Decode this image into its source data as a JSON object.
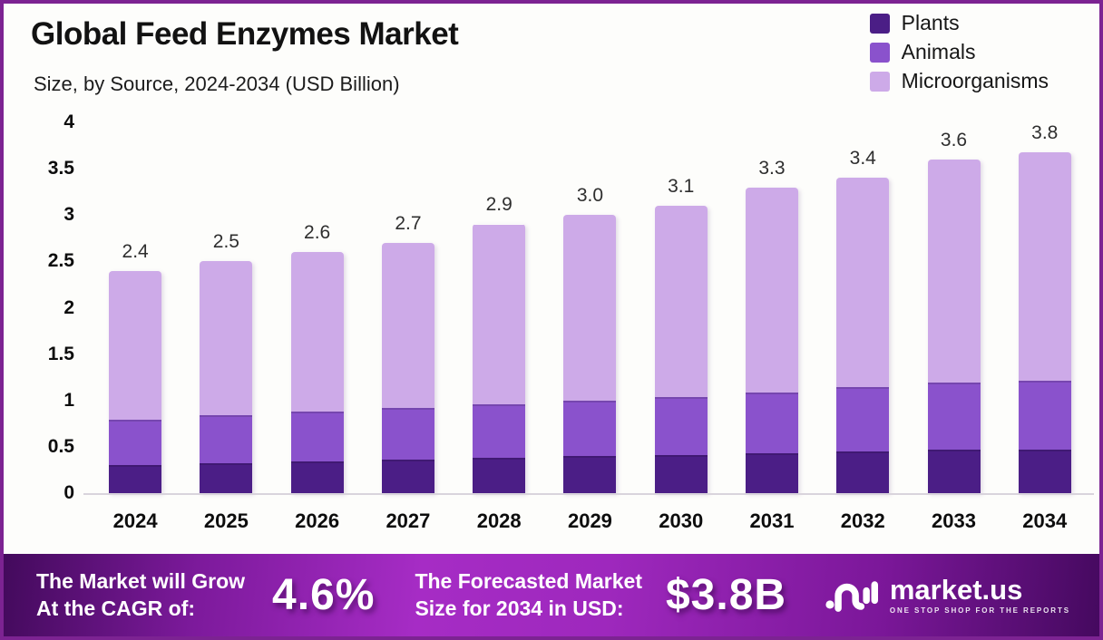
{
  "header": {
    "title": "Global Feed Enzymes Market",
    "subtitle": "Size, by Source, 2024-2034 (USD Billion)"
  },
  "legend": {
    "items": [
      {
        "label": "Plants",
        "color": "#4b1e86"
      },
      {
        "label": "Animals",
        "color": "#8a52cc"
      },
      {
        "label": "Microorganisms",
        "color": "#cdaae8"
      }
    ]
  },
  "chart_data": {
    "type": "bar",
    "stacked": true,
    "title": "Global Feed Enzymes Market",
    "subtitle": "Size, by Source, 2024-2034 (USD Billion)",
    "xlabel": "",
    "ylabel": "",
    "ylim": [
      0,
      4
    ],
    "grid": false,
    "legend_position": "top-right",
    "categories": [
      "2024",
      "2025",
      "2026",
      "2027",
      "2028",
      "2029",
      "2030",
      "2031",
      "2032",
      "2033",
      "2034"
    ],
    "y_ticks": [
      "4",
      "3.5",
      "3",
      "2.5",
      "2",
      "1.5",
      "1",
      "0.5",
      "0"
    ],
    "series": [
      {
        "name": "Plants",
        "color": "#4b1e86",
        "values": [
          0.3,
          0.32,
          0.34,
          0.36,
          0.38,
          0.4,
          0.41,
          0.43,
          0.45,
          0.47,
          0.49
        ]
      },
      {
        "name": "Animals",
        "color": "#8a52cc",
        "values": [
          0.49,
          0.52,
          0.54,
          0.56,
          0.58,
          0.6,
          0.63,
          0.66,
          0.69,
          0.72,
          0.76
        ]
      },
      {
        "name": "Microorganisms",
        "color": "#cdaae8",
        "values": [
          1.61,
          1.66,
          1.72,
          1.78,
          1.94,
          2.0,
          2.06,
          2.21,
          2.26,
          2.41,
          2.55
        ]
      }
    ],
    "totals": [
      2.4,
      2.5,
      2.6,
      2.7,
      2.9,
      3.0,
      3.1,
      3.3,
      3.4,
      3.6,
      3.8
    ],
    "totals_labels": [
      "2.4",
      "2.5",
      "2.6",
      "2.7",
      "2.9",
      "3.0",
      "3.1",
      "3.3",
      "3.4",
      "3.6",
      "3.8"
    ]
  },
  "footer": {
    "cagr_label_line1": "The Market will Grow",
    "cagr_label_line2": "At the CAGR of:",
    "cagr_value": "4.6%",
    "forecast_label_line1": "The Forecasted Market",
    "forecast_label_line2": "Size for 2034 in USD:",
    "forecast_value": "$3.8B",
    "brand": {
      "name": "market.us",
      "tagline": "ONE STOP SHOP FOR THE REPORTS"
    }
  }
}
